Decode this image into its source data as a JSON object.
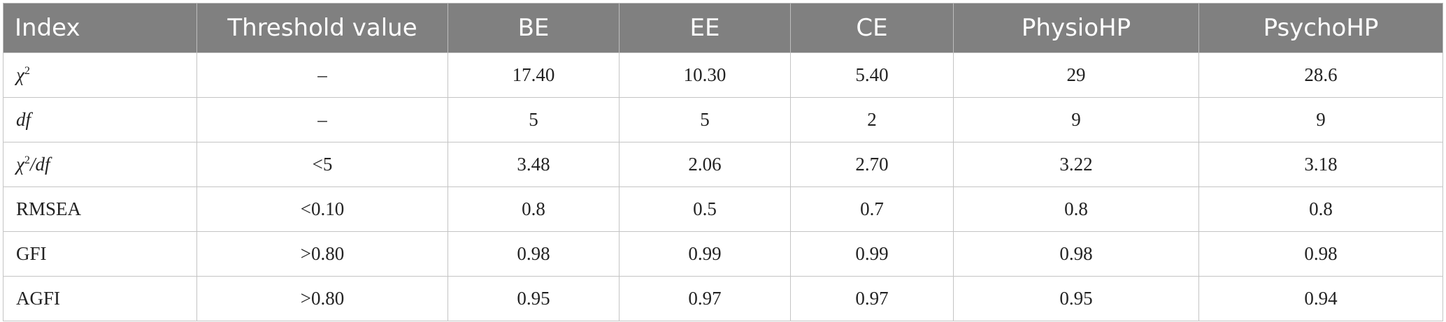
{
  "table": {
    "headers": [
      "Index",
      "Threshold value",
      "BE",
      "EE",
      "CE",
      "PhysioHP",
      "PsychoHP"
    ],
    "rows": [
      {
        "index": {
          "base": "χ",
          "sup": "2"
        },
        "threshold": "–",
        "values": [
          "17.40",
          "10.30",
          "5.40",
          "29",
          "28.6"
        ]
      },
      {
        "index": {
          "base": "df"
        },
        "threshold": "–",
        "values": [
          "5",
          "5",
          "2",
          "9",
          "9"
        ]
      },
      {
        "index": {
          "base": "χ",
          "sup": "2",
          "suffix": "/df"
        },
        "threshold": "<5",
        "values": [
          "3.48",
          "2.06",
          "2.70",
          "3.22",
          "3.18"
        ]
      },
      {
        "index": {
          "label": "RMSEA"
        },
        "threshold": "<0.10",
        "values": [
          "0.8",
          "0.5",
          "0.7",
          "0.8",
          "0.8"
        ]
      },
      {
        "index": {
          "label": "GFI"
        },
        "threshold": ">0.80",
        "values": [
          "0.98",
          "0.99",
          "0.99",
          "0.98",
          "0.98"
        ]
      },
      {
        "index": {
          "label": "AGFI"
        },
        "threshold": ">0.80",
        "values": [
          "0.95",
          "0.97",
          "0.97",
          "0.95",
          "0.94"
        ]
      }
    ]
  }
}
